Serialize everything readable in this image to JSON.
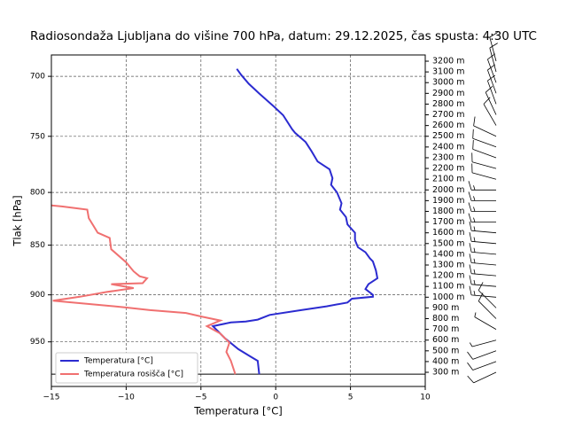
{
  "chart_data": {
    "type": "line",
    "title": "Radiosondaža Ljubljana do višine 700 hPa, datum: 29.12.2025, čas spusta: 4:30 UTC",
    "xlabel": "Temperatura [°C]",
    "ylabel": "Tlak [hPa]",
    "xlim": [
      -15,
      10
    ],
    "xticks": [
      {
        "value": -15,
        "label": "−15"
      },
      {
        "value": -10,
        "label": "−10"
      },
      {
        "value": -5,
        "label": "−5"
      },
      0,
      5,
      10
    ],
    "ylim": [
      1000,
      683
    ],
    "yscale": "log",
    "yticks": [
      700,
      750,
      800,
      850,
      900,
      950
    ],
    "y2lim": [
      168,
      3258
    ],
    "y2ticks": [
      {
        "value": 300,
        "label": "300 m"
      },
      {
        "value": 400,
        "label": "400 m"
      },
      {
        "value": 500,
        "label": "500 m"
      },
      {
        "value": 600,
        "label": "600 m"
      },
      {
        "value": 700,
        "label": "700 m"
      },
      {
        "value": 800,
        "label": "800 m"
      },
      {
        "value": 900,
        "label": "900 m"
      },
      {
        "value": 1000,
        "label": "1000 m"
      },
      {
        "value": 1100,
        "label": "1100 m"
      },
      {
        "value": 1200,
        "label": "1200 m"
      },
      {
        "value": 1300,
        "label": "1300 m"
      },
      {
        "value": 1400,
        "label": "1400 m"
      },
      {
        "value": 1500,
        "label": "1500 m"
      },
      {
        "value": 1600,
        "label": "1600 m"
      },
      {
        "value": 1700,
        "label": "1700 m"
      },
      {
        "value": 1800,
        "label": "1800 m"
      },
      {
        "value": 1900,
        "label": "1900 m"
      },
      {
        "value": 2000,
        "label": "2000 m"
      },
      {
        "value": 2100,
        "label": "2100 m"
      },
      {
        "value": 2200,
        "label": "2200 m"
      },
      {
        "value": 2300,
        "label": "2300 m"
      },
      {
        "value": 2400,
        "label": "2400 m"
      },
      {
        "value": 2500,
        "label": "2500 m"
      },
      {
        "value": 2600,
        "label": "2600 m"
      },
      {
        "value": 2700,
        "label": "2700 m"
      },
      {
        "value": 2800,
        "label": "2800 m"
      },
      {
        "value": 2900,
        "label": "2900 m"
      },
      {
        "value": 3000,
        "label": "3000 m"
      },
      {
        "value": 3100,
        "label": "3100 m"
      },
      {
        "value": 3200,
        "label": "3200 m"
      }
    ],
    "grid": true,
    "legend": "lower left",
    "surface_pressure": 986,
    "series": [
      {
        "name": "Temperatura [°C]",
        "color": "#2b2bd0",
        "pressure": [
          986,
          971,
          966,
          958,
          946,
          933,
          929,
          928,
          926,
          921,
          916,
          912,
          908,
          904,
          902,
          900,
          894,
          889,
          883,
          875,
          866,
          863,
          857,
          852,
          845,
          838,
          830,
          823,
          816,
          810,
          800,
          793,
          787,
          779,
          772,
          763,
          755,
          747,
          744,
          732,
          725,
          714,
          706,
          699,
          694
        ],
        "values": [
          -1.1,
          -1.2,
          -1.7,
          -2.5,
          -3.4,
          -4.2,
          -3.0,
          -2.0,
          -1.2,
          -0.4,
          1.7,
          3.4,
          4.8,
          5.1,
          6.5,
          6.5,
          6.0,
          6.2,
          6.8,
          6.7,
          6.5,
          6.3,
          6.0,
          5.5,
          5.3,
          5.3,
          4.8,
          4.7,
          4.3,
          4.4,
          4.1,
          3.7,
          3.8,
          3.6,
          2.8,
          2.4,
          2.0,
          1.3,
          1.1,
          0.5,
          -0.1,
          -1.1,
          -1.8,
          -2.3,
          -2.6
        ]
      },
      {
        "name": "Temperatura rosišča [°C]",
        "color": "#f07070",
        "pressure": [
          986,
          971,
          961,
          951,
          941,
          933,
          927,
          923,
          919,
          916,
          913,
          906,
          902,
          897,
          893,
          889,
          888,
          883,
          881,
          876,
          867,
          854,
          843,
          838,
          824,
          816,
          813,
          812
        ],
        "values": [
          -2.7,
          -3.0,
          -3.3,
          -3.1,
          -3.7,
          -4.6,
          -3.7,
          -4.9,
          -6.0,
          -8.4,
          -10.1,
          -14.9,
          -13.1,
          -11.3,
          -9.5,
          -11.0,
          -8.9,
          -8.6,
          -9.1,
          -9.5,
          -10.0,
          -11.0,
          -11.1,
          -11.9,
          -12.5,
          -12.6,
          -14.3,
          -15.0
        ]
      }
    ],
    "wind": {
      "heights": [
        300,
        400,
        500,
        600,
        700,
        800,
        900,
        1000,
        1100,
        1200,
        1300,
        1400,
        1500,
        1600,
        1700,
        1800,
        1900,
        2000,
        2100,
        2200,
        2300,
        2400,
        2500,
        2600,
        2700,
        2800,
        2900,
        3000,
        3100,
        3200
      ],
      "direction": [
        245,
        250,
        250,
        255,
        300,
        315,
        315,
        275,
        275,
        275,
        275,
        275,
        275,
        275,
        270,
        270,
        270,
        270,
        285,
        285,
        290,
        290,
        295,
        330,
        335,
        340,
        340,
        340,
        345,
        345
      ],
      "speed": [
        10,
        10,
        10,
        8,
        8,
        10,
        10,
        15,
        15,
        15,
        15,
        15,
        15,
        15,
        15,
        15,
        15,
        15,
        10,
        10,
        10,
        10,
        10,
        10,
        10,
        10,
        10,
        10,
        10,
        10
      ]
    }
  }
}
